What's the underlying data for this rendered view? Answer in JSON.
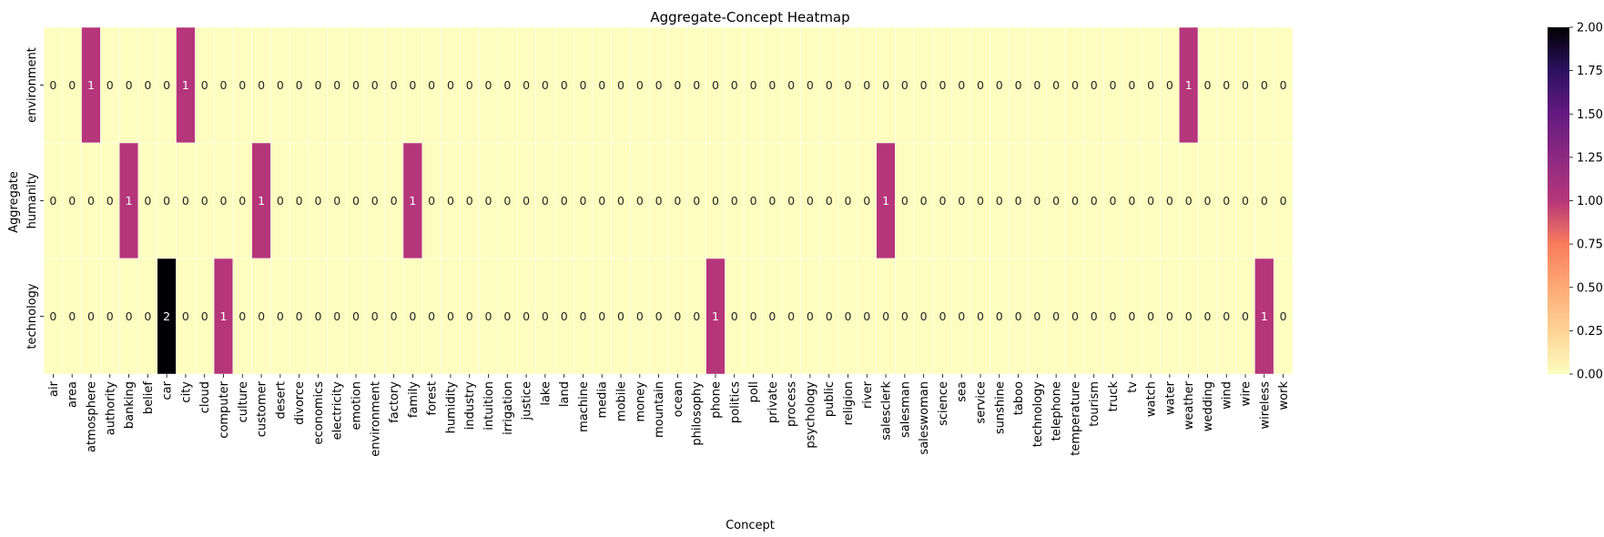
{
  "chart_data": {
    "type": "heatmap",
    "title": "Aggregate-Concept Heatmap",
    "xlabel": "Concept",
    "ylabel": "Aggregate",
    "rows": [
      "environment",
      "humanity",
      "technology"
    ],
    "columns": [
      "air",
      "area",
      "atmosphere",
      "authority",
      "banking",
      "belief",
      "car",
      "city",
      "cloud",
      "computer",
      "culture",
      "customer",
      "desert",
      "divorce",
      "economics",
      "electricity",
      "emotion",
      "environment",
      "factory",
      "family",
      "forest",
      "humidity",
      "industry",
      "intuition",
      "irrigation",
      "justice",
      "lake",
      "land",
      "machine",
      "media",
      "mobile",
      "money",
      "mountain",
      "ocean",
      "philosophy",
      "phone",
      "politics",
      "poll",
      "private",
      "process",
      "psychology",
      "public",
      "religion",
      "river",
      "salesclerk",
      "salesman",
      "saleswoman",
      "science",
      "sea",
      "service",
      "sunshine",
      "taboo",
      "technology",
      "telephone",
      "temperature",
      "tourism",
      "truck",
      "tv",
      "watch",
      "water",
      "weather",
      "wedding",
      "wind",
      "wire",
      "wireless",
      "work"
    ],
    "values": [
      [
        0,
        0,
        1,
        0,
        0,
        0,
        0,
        1,
        0,
        0,
        0,
        0,
        0,
        0,
        0,
        0,
        0,
        0,
        0,
        0,
        0,
        0,
        0,
        0,
        0,
        0,
        0,
        0,
        0,
        0,
        0,
        0,
        0,
        0,
        0,
        0,
        0,
        0,
        0,
        0,
        0,
        0,
        0,
        0,
        0,
        0,
        0,
        0,
        0,
        0,
        0,
        0,
        0,
        0,
        0,
        0,
        0,
        0,
        0,
        0,
        1,
        0,
        0,
        0,
        0,
        0
      ],
      [
        0,
        0,
        0,
        0,
        1,
        0,
        0,
        0,
        0,
        0,
        0,
        1,
        0,
        0,
        0,
        0,
        0,
        0,
        0,
        1,
        0,
        0,
        0,
        0,
        0,
        0,
        0,
        0,
        0,
        0,
        0,
        0,
        0,
        0,
        0,
        0,
        0,
        0,
        0,
        0,
        0,
        0,
        0,
        0,
        1,
        0,
        0,
        0,
        0,
        0,
        0,
        0,
        0,
        0,
        0,
        0,
        0,
        0,
        0,
        0,
        0,
        0,
        0,
        0,
        0,
        0
      ],
      [
        0,
        0,
        0,
        0,
        0,
        0,
        2,
        0,
        0,
        1,
        0,
        0,
        0,
        0,
        0,
        0,
        0,
        0,
        0,
        0,
        0,
        0,
        0,
        0,
        0,
        0,
        0,
        0,
        0,
        0,
        0,
        0,
        0,
        0,
        0,
        1,
        0,
        0,
        0,
        0,
        0,
        0,
        0,
        0,
        0,
        0,
        0,
        0,
        0,
        0,
        0,
        0,
        0,
        0,
        0,
        0,
        0,
        0,
        0,
        0,
        0,
        0,
        0,
        0,
        1,
        0
      ]
    ],
    "colorbar": {
      "min": 0,
      "max": 2,
      "ticks": [
        "0.00",
        "0.25",
        "0.50",
        "0.75",
        "1.00",
        "1.25",
        "1.50",
        "1.75",
        "2.00"
      ],
      "colormap": "magma_r"
    },
    "colors": {
      "zero": "#fcfdbf",
      "one": "#b5367a",
      "two": "#000004"
    },
    "annotations": true,
    "grid": false
  }
}
